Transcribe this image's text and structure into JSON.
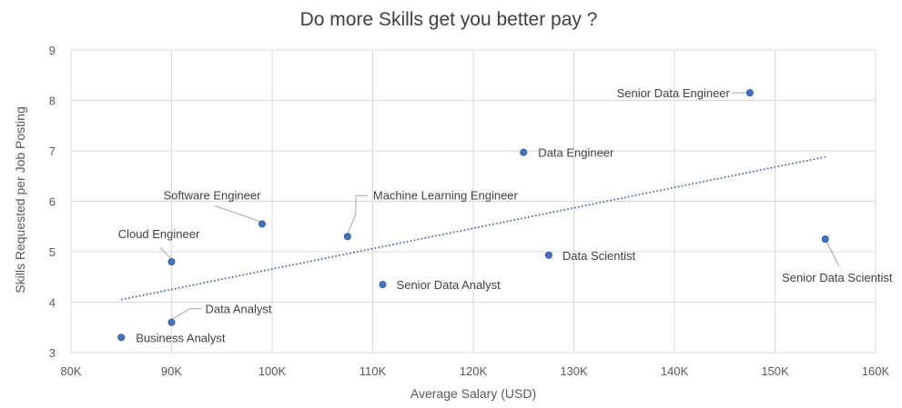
{
  "chart_data": {
    "type": "scatter",
    "title": "Do more Skills get you better pay ?",
    "xlabel": "Average Salary (USD)",
    "ylabel": "Skills Requested per Job Posting",
    "xlim": [
      80000,
      160000
    ],
    "ylim": [
      3,
      9
    ],
    "x_ticks": [
      "80K",
      "90K",
      "100K",
      "110K",
      "120K",
      "130K",
      "140K",
      "150K",
      "160K"
    ],
    "y_ticks": [
      "3",
      "4",
      "5",
      "6",
      "7",
      "8",
      "9"
    ],
    "grid": true,
    "trendline": {
      "style": "dotted",
      "x": [
        85000,
        155000
      ],
      "y": [
        4.05,
        6.88
      ]
    },
    "marker_color": "#4472c4",
    "points": [
      {
        "label": "Business Analyst",
        "x": 85000,
        "y": 3.3
      },
      {
        "label": "Data Analyst",
        "x": 90000,
        "y": 3.6
      },
      {
        "label": "Cloud Engineer",
        "x": 90000,
        "y": 4.8
      },
      {
        "label": "Software Engineer",
        "x": 99000,
        "y": 5.55
      },
      {
        "label": "Machine Learning Engineer",
        "x": 107500,
        "y": 5.3
      },
      {
        "label": "Senior Data Analyst",
        "x": 111000,
        "y": 4.35
      },
      {
        "label": "Data Engineer",
        "x": 125000,
        "y": 6.97
      },
      {
        "label": "Data Scientist",
        "x": 127500,
        "y": 4.93
      },
      {
        "label": "Senior Data Engineer",
        "x": 147500,
        "y": 8.15
      },
      {
        "label": "Senior Data Scientist",
        "x": 155000,
        "y": 5.25
      }
    ]
  }
}
